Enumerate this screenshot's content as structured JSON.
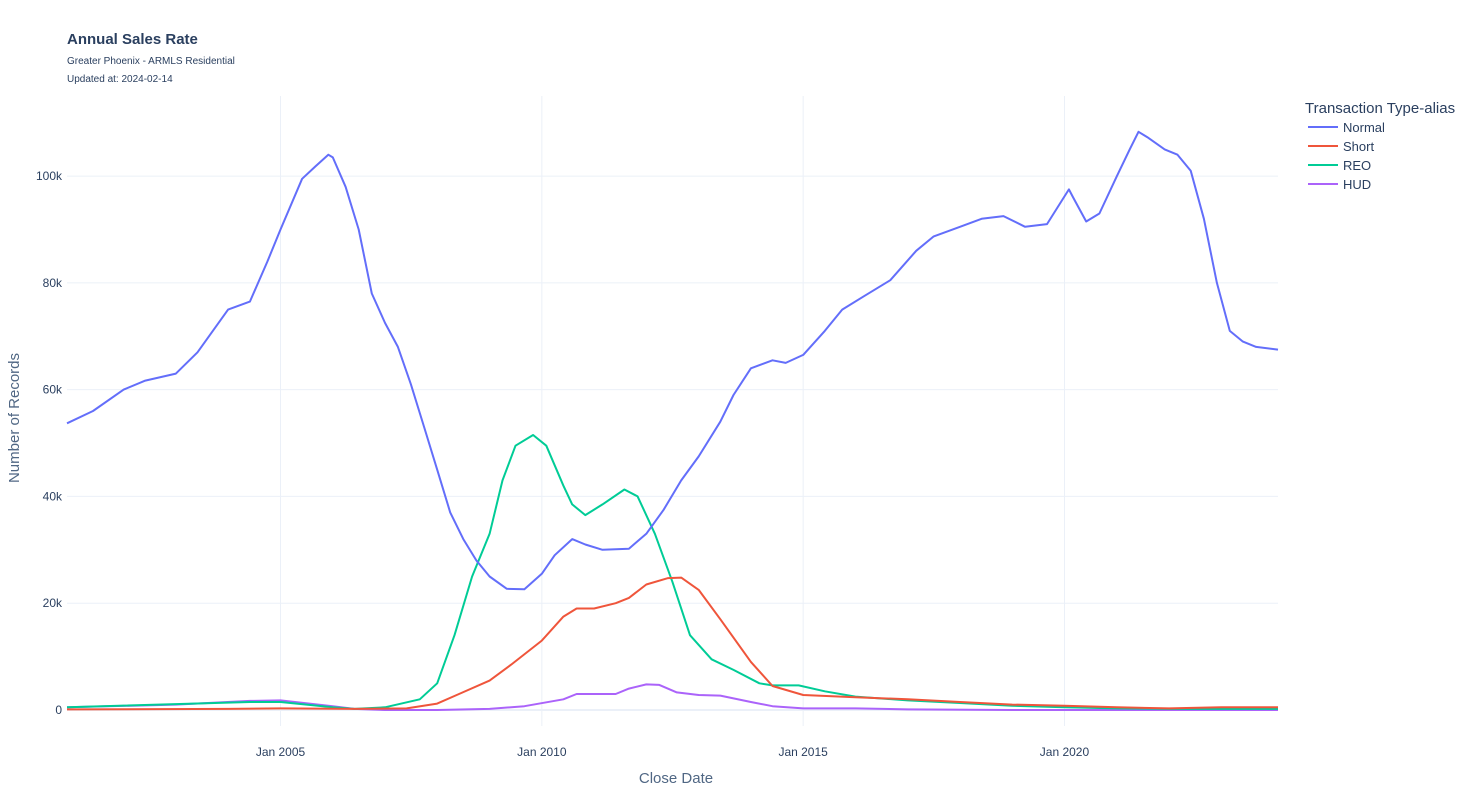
{
  "chart": {
    "title": "Annual Sales Rate",
    "subtitle": "Greater Phoenix - ARMLS Residential",
    "updated": "Updated at: 2024-02-14"
  },
  "chart_data": {
    "type": "line",
    "title": "Annual Sales Rate",
    "subtitle": "Greater Phoenix - ARMLS Residential",
    "xlabel": "Close Date",
    "ylabel": "Number of Records",
    "xlim": [
      "2000-12-01",
      "2024-02-01"
    ],
    "ylim": [
      -3000,
      115000
    ],
    "grid": true,
    "legend": {
      "title": "Transaction Type-alias",
      "position": "top-right"
    },
    "x_ticks": [
      {
        "date": "2005-01-01",
        "label": "Jan 2005"
      },
      {
        "date": "2010-01-01",
        "label": "Jan 2010"
      },
      {
        "date": "2015-01-01",
        "label": "Jan 2015"
      },
      {
        "date": "2020-01-01",
        "label": "Jan 2020"
      }
    ],
    "y_ticks": [
      {
        "value": 0,
        "label": "0"
      },
      {
        "value": 20000,
        "label": "20k"
      },
      {
        "value": 40000,
        "label": "40k"
      },
      {
        "value": 60000,
        "label": "60k"
      },
      {
        "value": 80000,
        "label": "80k"
      },
      {
        "value": 100000,
        "label": "100k"
      }
    ],
    "series": [
      {
        "name": "Normal",
        "color": "#636efa",
        "points": [
          [
            "2000-12-01",
            53700
          ],
          [
            "2001-06-01",
            56000
          ],
          [
            "2002-01-01",
            60000
          ],
          [
            "2002-06-01",
            61700
          ],
          [
            "2003-01-01",
            63000
          ],
          [
            "2003-06-01",
            67000
          ],
          [
            "2004-01-01",
            75000
          ],
          [
            "2004-06-01",
            76500
          ],
          [
            "2004-10-01",
            84000
          ],
          [
            "2005-01-01",
            90000
          ],
          [
            "2005-06-01",
            99500
          ],
          [
            "2005-09-01",
            101800
          ],
          [
            "2005-12-01",
            104000
          ],
          [
            "2006-01-01",
            103500
          ],
          [
            "2006-04-01",
            98000
          ],
          [
            "2006-07-01",
            90000
          ],
          [
            "2006-10-01",
            78000
          ],
          [
            "2007-01-01",
            72500
          ],
          [
            "2007-04-01",
            68000
          ],
          [
            "2007-07-01",
            61000
          ],
          [
            "2007-10-01",
            53000
          ],
          [
            "2008-01-01",
            45000
          ],
          [
            "2008-04-01",
            37000
          ],
          [
            "2008-07-01",
            32000
          ],
          [
            "2008-10-01",
            28000
          ],
          [
            "2009-01-01",
            25000
          ],
          [
            "2009-05-01",
            22700
          ],
          [
            "2009-09-01",
            22600
          ],
          [
            "2010-01-01",
            25500
          ],
          [
            "2010-04-01",
            29000
          ],
          [
            "2010-08-01",
            32000
          ],
          [
            "2010-11-01",
            31000
          ],
          [
            "2011-03-01",
            30000
          ],
          [
            "2011-09-01",
            30200
          ],
          [
            "2012-01-01",
            33000
          ],
          [
            "2012-05-01",
            37500
          ],
          [
            "2012-09-01",
            43000
          ],
          [
            "2013-01-01",
            47500
          ],
          [
            "2013-06-01",
            54000
          ],
          [
            "2013-09-01",
            59000
          ],
          [
            "2014-01-01",
            64000
          ],
          [
            "2014-06-01",
            65500
          ],
          [
            "2014-09-01",
            65000
          ],
          [
            "2015-01-01",
            66500
          ],
          [
            "2015-06-01",
            71000
          ],
          [
            "2015-10-01",
            75000
          ],
          [
            "2016-03-01",
            77500
          ],
          [
            "2016-09-01",
            80500
          ],
          [
            "2017-03-01",
            86000
          ],
          [
            "2017-07-01",
            88700
          ],
          [
            "2018-01-01",
            90500
          ],
          [
            "2018-06-01",
            92000
          ],
          [
            "2018-11-01",
            92500
          ],
          [
            "2019-04-01",
            90500
          ],
          [
            "2019-09-01",
            91000
          ],
          [
            "2020-02-01",
            97500
          ],
          [
            "2020-03-01",
            96000
          ],
          [
            "2020-06-01",
            91500
          ],
          [
            "2020-09-01",
            93000
          ],
          [
            "2021-01-01",
            100000
          ],
          [
            "2021-04-01",
            105000
          ],
          [
            "2021-06-01",
            108300
          ],
          [
            "2021-08-01",
            107300
          ],
          [
            "2021-12-01",
            105000
          ],
          [
            "2022-03-01",
            104000
          ],
          [
            "2022-06-01",
            101000
          ],
          [
            "2022-09-01",
            92000
          ],
          [
            "2022-12-01",
            80000
          ],
          [
            "2023-03-01",
            71000
          ],
          [
            "2023-06-01",
            69000
          ],
          [
            "2023-09-01",
            68000
          ],
          [
            "2024-02-01",
            67500
          ]
        ]
      },
      {
        "name": "Short",
        "color": "#ef553b",
        "points": [
          [
            "2000-12-01",
            100
          ],
          [
            "2004-01-01",
            200
          ],
          [
            "2005-01-01",
            300
          ],
          [
            "2006-06-01",
            200
          ],
          [
            "2007-06-01",
            300
          ],
          [
            "2008-01-01",
            1200
          ],
          [
            "2008-06-01",
            3000
          ],
          [
            "2009-01-01",
            5500
          ],
          [
            "2009-06-01",
            8500
          ],
          [
            "2010-01-01",
            13000
          ],
          [
            "2010-06-01",
            17500
          ],
          [
            "2010-09-01",
            19000
          ],
          [
            "2011-01-01",
            19000
          ],
          [
            "2011-06-01",
            20000
          ],
          [
            "2011-09-01",
            21000
          ],
          [
            "2012-01-01",
            23500
          ],
          [
            "2012-06-01",
            24700
          ],
          [
            "2012-09-01",
            24800
          ],
          [
            "2013-01-01",
            22500
          ],
          [
            "2013-06-01",
            17000
          ],
          [
            "2014-01-01",
            9000
          ],
          [
            "2014-06-01",
            4500
          ],
          [
            "2015-01-01",
            2800
          ],
          [
            "2016-01-01",
            2400
          ],
          [
            "2017-01-01",
            2000
          ],
          [
            "2018-01-01",
            1500
          ],
          [
            "2019-01-01",
            1000
          ],
          [
            "2020-01-01",
            800
          ],
          [
            "2021-01-01",
            500
          ],
          [
            "2022-01-01",
            300
          ],
          [
            "2023-01-01",
            500
          ],
          [
            "2024-02-01",
            500
          ]
        ]
      },
      {
        "name": "REO",
        "color": "#00cc96",
        "points": [
          [
            "2000-12-01",
            500
          ],
          [
            "2004-06-01",
            1500
          ],
          [
            "2005-01-01",
            1500
          ],
          [
            "2006-01-01",
            500
          ],
          [
            "2006-06-01",
            200
          ],
          [
            "2007-01-01",
            500
          ],
          [
            "2007-09-01",
            2000
          ],
          [
            "2008-01-01",
            5000
          ],
          [
            "2008-05-01",
            14000
          ],
          [
            "2008-09-01",
            25000
          ],
          [
            "2009-01-01",
            33000
          ],
          [
            "2009-04-01",
            43000
          ],
          [
            "2009-07-01",
            49500
          ],
          [
            "2009-11-01",
            51500
          ],
          [
            "2010-02-01",
            49500
          ],
          [
            "2010-06-01",
            42000
          ],
          [
            "2010-08-01",
            38500
          ],
          [
            "2010-11-01",
            36500
          ],
          [
            "2011-03-01",
            38500
          ],
          [
            "2011-08-01",
            41300
          ],
          [
            "2011-11-01",
            40000
          ],
          [
            "2012-03-01",
            33000
          ],
          [
            "2012-07-01",
            24000
          ],
          [
            "2012-11-01",
            14000
          ],
          [
            "2013-04-01",
            9500
          ],
          [
            "2013-09-01",
            7500
          ],
          [
            "2014-03-01",
            5000
          ],
          [
            "2014-06-01",
            4600
          ],
          [
            "2014-12-01",
            4600
          ],
          [
            "2015-06-01",
            3500
          ],
          [
            "2016-01-01",
            2500
          ],
          [
            "2017-01-01",
            1800
          ],
          [
            "2018-01-01",
            1300
          ],
          [
            "2019-01-01",
            800
          ],
          [
            "2020-01-01",
            500
          ],
          [
            "2021-01-01",
            300
          ],
          [
            "2022-01-01",
            200
          ],
          [
            "2024-02-01",
            200
          ]
        ]
      },
      {
        "name": "HUD",
        "color": "#ab63fa",
        "points": [
          [
            "2000-12-01",
            500
          ],
          [
            "2003-01-01",
            1000
          ],
          [
            "2004-06-01",
            1700
          ],
          [
            "2005-01-01",
            1800
          ],
          [
            "2006-01-01",
            700
          ],
          [
            "2006-06-01",
            200
          ],
          [
            "2007-01-01",
            0
          ],
          [
            "2008-01-01",
            0
          ],
          [
            "2009-01-01",
            200
          ],
          [
            "2009-09-01",
            700
          ],
          [
            "2010-06-01",
            2000
          ],
          [
            "2010-09-01",
            3000
          ],
          [
            "2011-06-01",
            3000
          ],
          [
            "2011-09-01",
            4000
          ],
          [
            "2012-01-01",
            4800
          ],
          [
            "2012-04-01",
            4700
          ],
          [
            "2012-08-01",
            3300
          ],
          [
            "2013-01-01",
            2800
          ],
          [
            "2013-06-01",
            2700
          ],
          [
            "2014-01-01",
            1500
          ],
          [
            "2014-06-01",
            700
          ],
          [
            "2015-01-01",
            300
          ],
          [
            "2016-01-01",
            300
          ],
          [
            "2017-01-01",
            100
          ],
          [
            "2019-01-01",
            0
          ],
          [
            "2024-02-01",
            0
          ]
        ]
      }
    ]
  }
}
